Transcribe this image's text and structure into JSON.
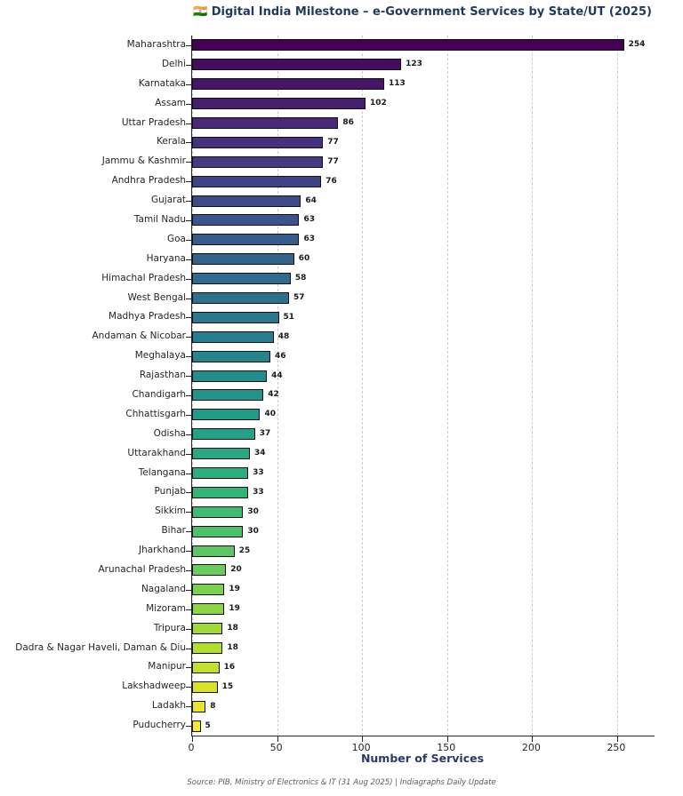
{
  "chart_data": {
    "type": "bar",
    "orientation": "horizontal",
    "title": "🇮🇳 Digital India Milestone – e-Government Services by State/UT (2025)",
    "xlabel": "Number of Services",
    "ylabel": "",
    "source_note": "Source: PIB, Ministry of Electronics & IT (31 Aug 2025) | Indiagraphs Daily Update",
    "categories": [
      "Maharashtra",
      "Delhi",
      "Karnataka",
      "Assam",
      "Uttar Pradesh",
      "Kerala",
      "Jammu & Kashmir",
      "Andhra Pradesh",
      "Gujarat",
      "Tamil Nadu",
      "Goa",
      "Haryana",
      "Himachal Pradesh",
      "West Bengal",
      "Madhya Pradesh",
      "Andaman & Nicobar",
      "Meghalaya",
      "Rajasthan",
      "Chandigarh",
      "Chhattisgarh",
      "Odisha",
      "Uttarakhand",
      "Telangana",
      "Punjab",
      "Sikkim",
      "Bihar",
      "Jharkhand",
      "Arunachal Pradesh",
      "Nagaland",
      "Mizoram",
      "Tripura",
      "Dadra & Nagar Haveli, Daman & Diu",
      "Manipur",
      "Lakshadweep",
      "Ladakh",
      "Puducherry"
    ],
    "values": [
      254,
      123,
      113,
      102,
      86,
      77,
      77,
      76,
      64,
      63,
      63,
      60,
      58,
      57,
      51,
      48,
      46,
      44,
      42,
      40,
      37,
      34,
      33,
      33,
      30,
      30,
      25,
      20,
      19,
      19,
      18,
      18,
      16,
      15,
      8,
      5
    ],
    "xticks": [
      0,
      50,
      100,
      150,
      200,
      250
    ],
    "xlim": [
      0,
      272
    ],
    "grid": "vertical-dashed",
    "legend": "none",
    "colormap": "viridis",
    "palette": [
      "#440154",
      "#482878",
      "#3e4989",
      "#31688e",
      "#26828e",
      "#1f9e89",
      "#35b779",
      "#6dcd59",
      "#b4de2c",
      "#fde725"
    ],
    "colors": {
      "title": "#1e3a5f",
      "axis_label": "#2b3a64",
      "tick_text": "#262626",
      "bar_edge": "#101010",
      "gridline": "#cccccc",
      "footer_text": "#5a5a66",
      "background": "#ffffff"
    }
  }
}
